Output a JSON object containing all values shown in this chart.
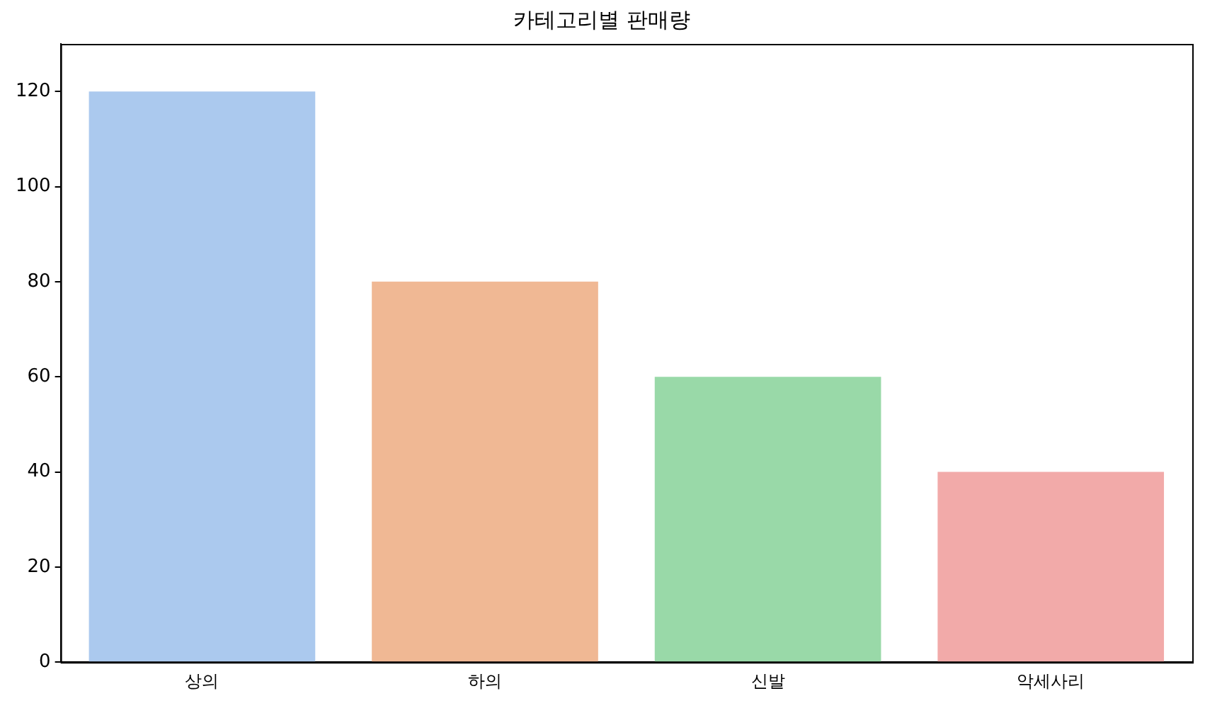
{
  "chart_data": {
    "type": "bar",
    "title": "카테고리별 판매량",
    "categories": [
      "상의",
      "하의",
      "신발",
      "악세사리"
    ],
    "values": [
      120,
      80,
      60,
      40
    ],
    "colors": [
      "#abc9ee",
      "#f0b894",
      "#99d9a8",
      "#f2aaa9"
    ],
    "ylim": [
      0,
      130
    ],
    "yticks": [
      0,
      20,
      40,
      60,
      80,
      100,
      120
    ],
    "grid": false,
    "legend": false
  }
}
